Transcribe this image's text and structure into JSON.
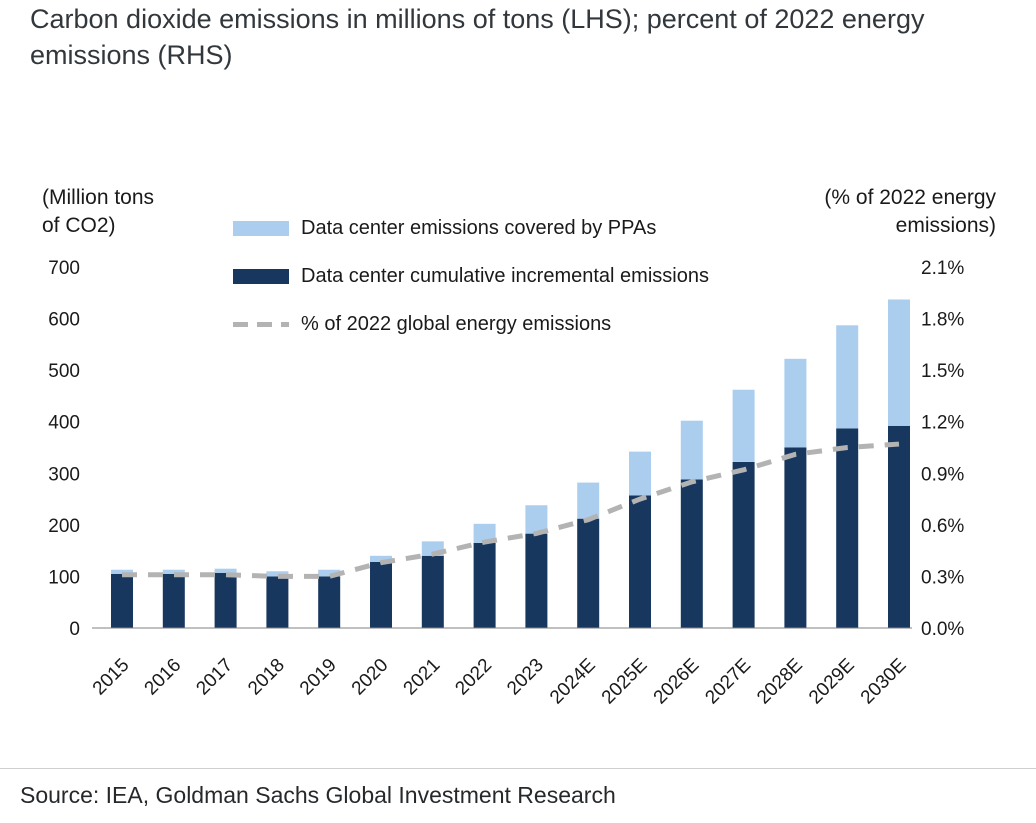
{
  "chart_data": {
    "type": "bar",
    "stacked": true,
    "title": "Carbon dioxide emissions in millions of tons (LHS); percent of 2022 energy emissions (RHS)",
    "left_axis_title_line1": "(Million tons",
    "left_axis_title_line2": "of CO2)",
    "right_axis_title_line1": "(% of 2022 energy",
    "right_axis_title_line2": "emissions)",
    "categories": [
      "2015",
      "2016",
      "2017",
      "2018",
      "2019",
      "2020",
      "2021",
      "2022",
      "2023",
      "2024E",
      "2025E",
      "2026E",
      "2027E",
      "2028E",
      "2029E",
      "2030E"
    ],
    "series": [
      {
        "name": "Data center cumulative incremental emissions",
        "color": "#17375e",
        "values": [
          105,
          105,
          107,
          100,
          100,
          128,
          140,
          165,
          183,
          212,
          257,
          288,
          322,
          350,
          387,
          392
        ]
      },
      {
        "name": "Data center emissions covered by PPAs",
        "color": "#abceee",
        "values": [
          8,
          8,
          8,
          10,
          13,
          12,
          28,
          37,
          55,
          70,
          85,
          114,
          140,
          172,
          200,
          245
        ]
      }
    ],
    "line_series": {
      "name": "% of 2022 global energy emissions",
      "color": "#b3b3b3",
      "style": "dashed",
      "values": [
        0.31,
        0.31,
        0.31,
        0.3,
        0.3,
        0.38,
        0.43,
        0.5,
        0.55,
        0.63,
        0.75,
        0.85,
        0.92,
        1.01,
        1.05,
        1.07
      ]
    },
    "left_axis": {
      "min": 0,
      "max": 700,
      "step": 100,
      "tick_labels": [
        "0",
        "100",
        "200",
        "300",
        "400",
        "500",
        "600",
        "700"
      ]
    },
    "right_axis": {
      "min": 0,
      "max": 2.1,
      "step": 0.3,
      "tick_labels": [
        "0.0%",
        "0.3%",
        "0.6%",
        "0.9%",
        "1.2%",
        "1.5%",
        "1.8%",
        "2.1%"
      ]
    },
    "legend_position": "top-left-inside",
    "grid": false
  },
  "legend": {
    "items": [
      {
        "label": "Data center emissions covered by PPAs",
        "swatch": "light-blue"
      },
      {
        "label": "Data center cumulative incremental emissions",
        "swatch": "dark-navy"
      },
      {
        "label": "% of 2022 global energy emissions",
        "swatch": "gray-dashed"
      }
    ]
  },
  "footer": {
    "source": "Source: IEA, Goldman Sachs Global Investment Research"
  }
}
